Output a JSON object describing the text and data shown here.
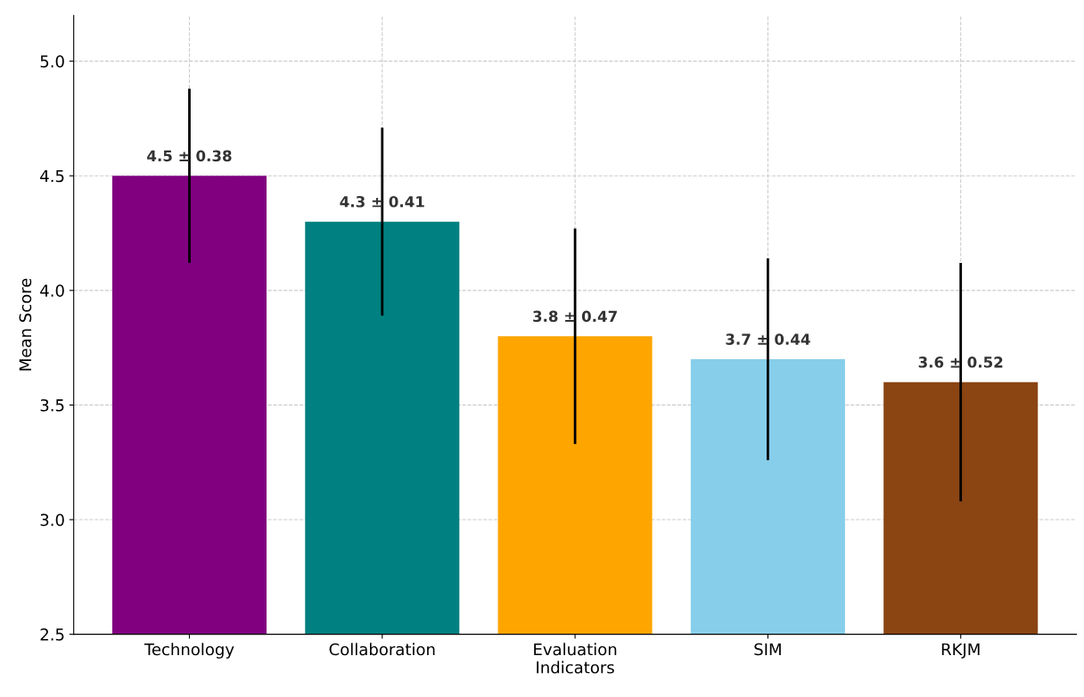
{
  "chart_data": {
    "type": "bar",
    "xlabel": "Indicators",
    "ylabel": "Mean Score",
    "categories": [
      "Technology",
      "Collaboration",
      "Evaluation",
      "SIM",
      "RKJM"
    ],
    "values": [
      4.5,
      4.3,
      3.8,
      3.7,
      3.6
    ],
    "errors": [
      0.38,
      0.41,
      0.47,
      0.44,
      0.52
    ],
    "colors": [
      "#800080",
      "#008080",
      "#ffa500",
      "#87ceeb",
      "#8b4513"
    ],
    "value_labels": [
      "4.5 ± 0.38",
      "4.3 ± 0.41",
      "3.8 ± 0.47",
      "3.7 ± 0.44",
      "3.6 ± 0.52"
    ],
    "ylim": [
      2.5,
      5.2
    ],
    "yticks": [
      2.5,
      {
        "value": 3,
        "label": "3.0"
      },
      3.5,
      {
        "value": 4,
        "label": "4.0"
      },
      4.5,
      {
        "value": 5,
        "label": "5.0"
      }
    ],
    "grid": true
  }
}
